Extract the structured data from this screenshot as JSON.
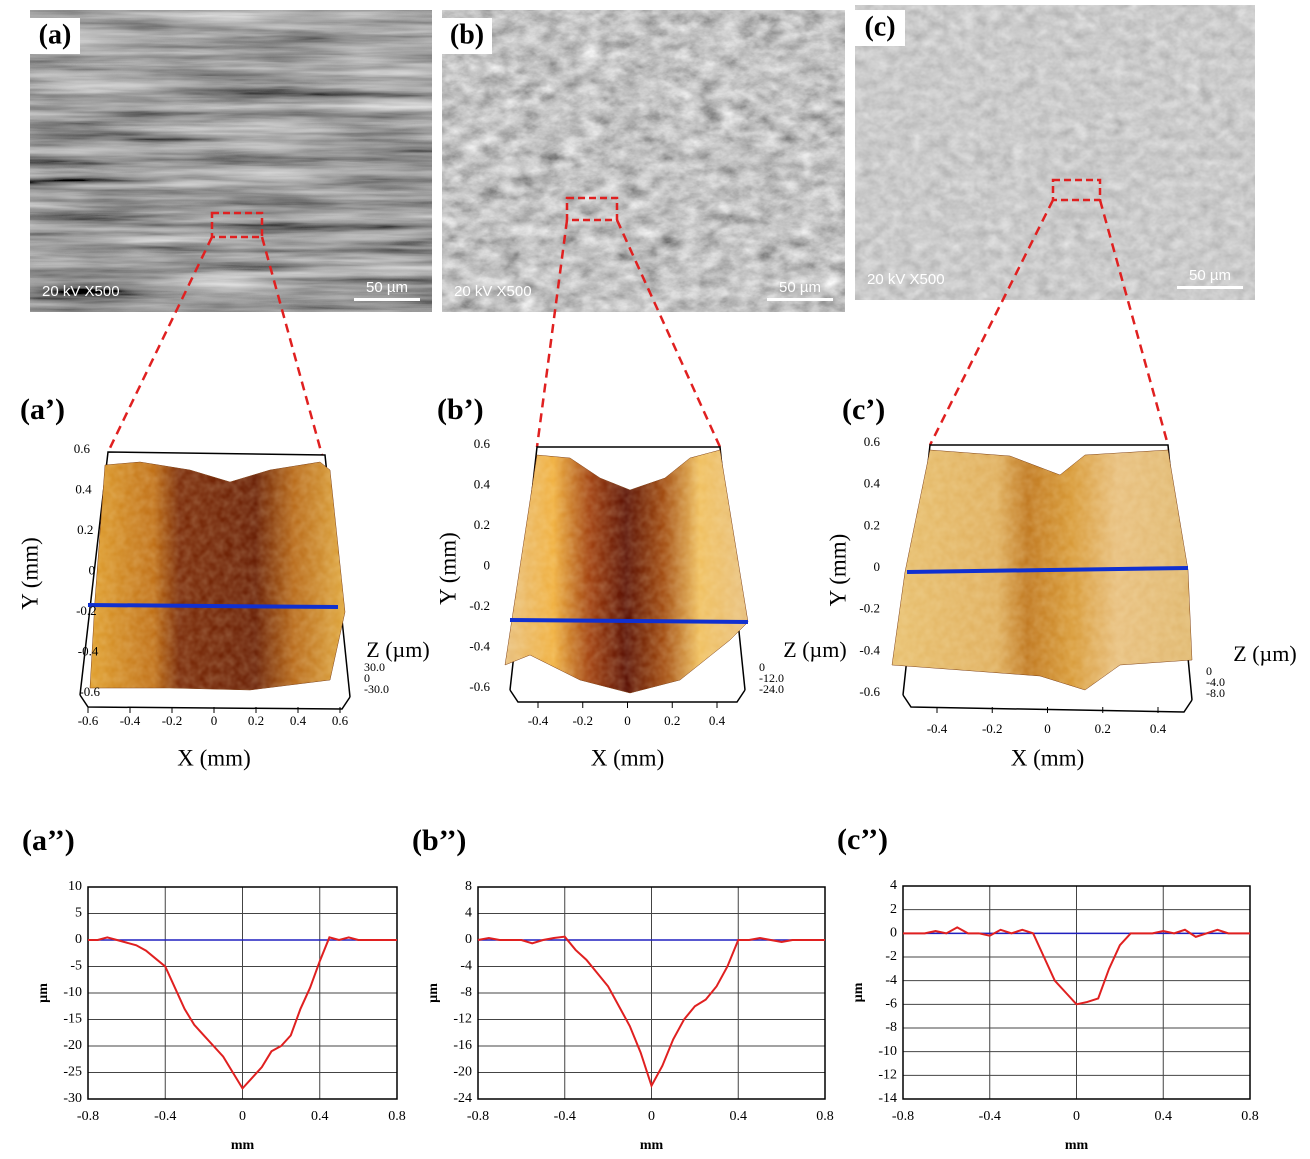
{
  "sem_panels": [
    {
      "label": "(a)",
      "info": "20 kV X500",
      "scale": "50 µm"
    },
    {
      "label": "(b)",
      "info": "20 kV X500",
      "scale": "50 µm"
    },
    {
      "label": "(c)",
      "info": "20 kV X500",
      "scale": "50 µm"
    }
  ],
  "surface_panels": [
    {
      "label": "(a’)",
      "y_label": "Y (mm)",
      "x_label": "X (mm)",
      "z_label": "Z (µm)",
      "yticks": [
        "0.6",
        "0.4",
        "0.2",
        "0",
        "-0.2",
        "-0.4",
        "-0.6"
      ],
      "xticks": [
        "-0.6",
        "-0.4",
        "-0.2",
        "0",
        "0.2",
        "0.4",
        "0.6"
      ],
      "zticks": [
        "30.0",
        "0",
        "-30.0"
      ]
    },
    {
      "label": "(b’)",
      "y_label": "Y (mm)",
      "x_label": "X (mm)",
      "z_label": "Z (µm)",
      "yticks": [
        "0.6",
        "0.4",
        "0.2",
        "0",
        "-0.2",
        "-0.4",
        "-0.6"
      ],
      "xticks": [
        "-0.4",
        "-0.2",
        "0",
        "0.2",
        "0.4"
      ],
      "zticks": [
        "0",
        "-12.0",
        "-24.0"
      ]
    },
    {
      "label": "(c’)",
      "y_label": "Y (mm)",
      "x_label": "X (mm)",
      "z_label": "Z (µm)",
      "yticks": [
        "0.6",
        "0.4",
        "0.2",
        "0",
        "-0.2",
        "-0.4",
        "-0.6"
      ],
      "xticks": [
        "-0.4",
        "-0.2",
        "0",
        "0.2",
        "0.4"
      ],
      "zticks": [
        "0",
        "-4.0",
        "-8.0"
      ]
    }
  ],
  "chart_data": [
    {
      "type": "line",
      "title": "(a’’)",
      "x_label": "mm",
      "y_label": "µm",
      "x": [
        -0.8,
        -0.75,
        -0.7,
        -0.65,
        -0.6,
        -0.55,
        -0.5,
        -0.45,
        -0.4,
        -0.35,
        -0.3,
        -0.25,
        -0.2,
        -0.15,
        -0.1,
        -0.05,
        0,
        0.05,
        0.1,
        0.15,
        0.2,
        0.25,
        0.3,
        0.35,
        0.4,
        0.45,
        0.5,
        0.55,
        0.6,
        0.65,
        0.7,
        0.75,
        0.8
      ],
      "series": [
        {
          "color": "#e02020",
          "values": [
            0,
            0,
            0.5,
            0,
            -0.5,
            -1,
            -2,
            -3.5,
            -5,
            -9,
            -13,
            -16,
            -18,
            -20,
            -22,
            -25,
            -28,
            -26,
            -24,
            -21,
            -20,
            -18,
            -13,
            -9,
            -4,
            0.5,
            0,
            0.5,
            0,
            0,
            0,
            0,
            0
          ]
        }
      ],
      "hline": {
        "value": 0,
        "color": "#2020c0"
      },
      "xlim": [
        -0.8,
        0.8
      ],
      "xticks": [
        -0.8,
        -0.4,
        0,
        0.4,
        0.8
      ],
      "ylim": [
        -30,
        10
      ],
      "yticks": [
        -30,
        -25,
        -20,
        -15,
        -10,
        -5,
        0,
        5,
        10
      ],
      "grid": true
    },
    {
      "type": "line",
      "title": "(b’’)",
      "x_label": "mm",
      "y_label": "µm",
      "x": [
        -0.8,
        -0.75,
        -0.7,
        -0.65,
        -0.6,
        -0.55,
        -0.5,
        -0.45,
        -0.4,
        -0.35,
        -0.3,
        -0.25,
        -0.2,
        -0.15,
        -0.1,
        -0.05,
        0,
        0.05,
        0.1,
        0.15,
        0.2,
        0.25,
        0.3,
        0.35,
        0.4,
        0.45,
        0.5,
        0.55,
        0.6,
        0.65,
        0.7,
        0.75,
        0.8
      ],
      "series": [
        {
          "color": "#e02020",
          "values": [
            0,
            0.3,
            0,
            0,
            0,
            -0.5,
            0,
            0.3,
            0.5,
            -1.5,
            -3,
            -5,
            -7,
            -10,
            -13,
            -17,
            -22,
            -19,
            -15,
            -12,
            -10,
            -9,
            -7,
            -4,
            0,
            0,
            0.3,
            0,
            -0.3,
            0,
            0,
            0,
            0
          ]
        }
      ],
      "hline": {
        "value": 0,
        "color": "#2020c0"
      },
      "xlim": [
        -0.8,
        0.8
      ],
      "xticks": [
        -0.8,
        -0.4,
        0,
        0.4,
        0.8
      ],
      "ylim": [
        -24,
        8
      ],
      "yticks": [
        -24,
        -20,
        -16,
        -12,
        -8,
        -4,
        0,
        4,
        8
      ],
      "grid": true
    },
    {
      "type": "line",
      "title": "(c’’)",
      "x_label": "mm",
      "y_label": "µm",
      "x": [
        -0.8,
        -0.75,
        -0.7,
        -0.65,
        -0.6,
        -0.55,
        -0.5,
        -0.45,
        -0.4,
        -0.35,
        -0.3,
        -0.25,
        -0.2,
        -0.15,
        -0.1,
        -0.05,
        0,
        0.05,
        0.1,
        0.15,
        0.2,
        0.25,
        0.3,
        0.35,
        0.4,
        0.45,
        0.5,
        0.55,
        0.6,
        0.65,
        0.7,
        0.75,
        0.8
      ],
      "series": [
        {
          "color": "#e02020",
          "values": [
            0,
            0,
            0,
            0.2,
            0,
            0.5,
            0,
            0,
            -0.2,
            0.3,
            0,
            0.3,
            0,
            -2,
            -4,
            -5,
            -6,
            -5.8,
            -5.5,
            -3,
            -1,
            0,
            0,
            0,
            0.2,
            0,
            0.3,
            -0.3,
            0,
            0.3,
            0,
            0,
            0
          ]
        }
      ],
      "hline": {
        "value": 0,
        "color": "#2020c0"
      },
      "xlim": [
        -0.8,
        0.8
      ],
      "xticks": [
        -0.8,
        -0.4,
        0,
        0.4,
        0.8
      ],
      "ylim": [
        -14,
        4
      ],
      "yticks": [
        -14,
        -12,
        -10,
        -8,
        -6,
        -4,
        -2,
        0,
        2,
        4
      ],
      "grid": true
    }
  ]
}
